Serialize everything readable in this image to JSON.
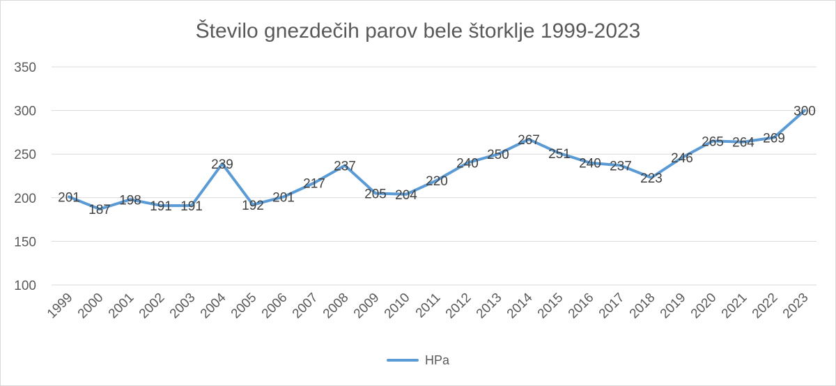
{
  "chart_data": {
    "type": "line",
    "title": "Število gnezdečih parov bele štorklje 1999-2023",
    "xlabel": "",
    "ylabel": "",
    "categories": [
      "1999",
      "2000",
      "2001",
      "2002",
      "2003",
      "2004",
      "2005",
      "2006",
      "2007",
      "2008",
      "2009",
      "2010",
      "2011",
      "2012",
      "2013",
      "2014",
      "2015",
      "2016",
      "2017",
      "2018",
      "2019",
      "2020",
      "2021",
      "2022",
      "2023"
    ],
    "series": [
      {
        "name": "HPa",
        "color": "#5b9bd5",
        "values": [
          201,
          187,
          198,
          191,
          191,
          239,
          192,
          201,
          217,
          237,
          205,
          204,
          220,
          240,
          250,
          267,
          251,
          240,
          237,
          223,
          246,
          265,
          264,
          269,
          300
        ]
      }
    ],
    "ylim": [
      100,
      350
    ],
    "yticks": [
      100,
      150,
      200,
      250,
      300,
      350
    ],
    "grid": true,
    "legend_position": "bottom",
    "data_labels": true
  }
}
